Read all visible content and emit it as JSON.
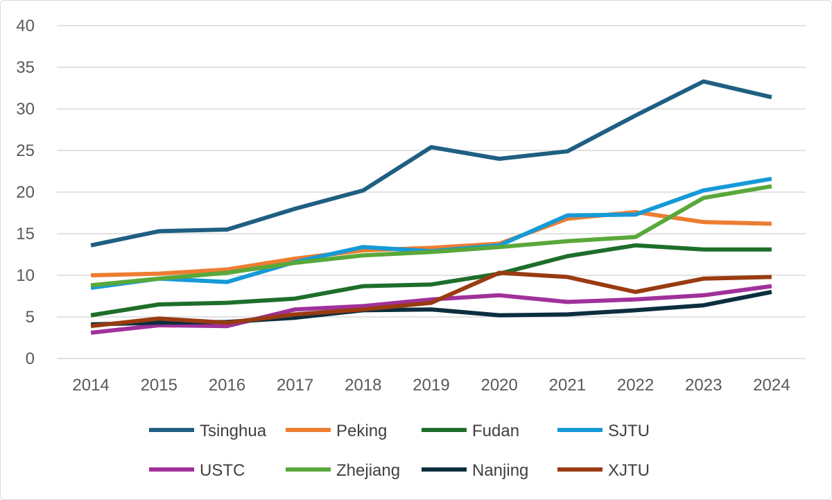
{
  "chart_data": {
    "type": "line",
    "title": "",
    "xlabel": "",
    "ylabel": "",
    "x": [
      2014,
      2015,
      2016,
      2017,
      2018,
      2019,
      2020,
      2021,
      2022,
      2023,
      2024
    ],
    "ylim": [
      0,
      40
    ],
    "yticks": [
      0,
      5,
      10,
      15,
      20,
      25,
      30,
      35,
      40
    ],
    "grid": true,
    "legend_position": "bottom",
    "series": [
      {
        "name": "Tsinghua",
        "color": "#1f5f82",
        "values": [
          13.6,
          15.3,
          15.5,
          18.0,
          20.2,
          25.4,
          24.0,
          24.9,
          29.2,
          33.3,
          31.4
        ]
      },
      {
        "name": "Peking",
        "color": "#ed7d31",
        "values": [
          10.0,
          10.2,
          10.7,
          12.0,
          13.0,
          13.3,
          13.8,
          16.8,
          17.6,
          16.4,
          16.2
        ]
      },
      {
        "name": "Fudan",
        "color": "#1e6e2a",
        "values": [
          5.2,
          6.5,
          6.7,
          7.2,
          8.7,
          8.9,
          10.2,
          12.3,
          13.6,
          13.1,
          13.1
        ]
      },
      {
        "name": "SJTU",
        "color": "#169ad7",
        "values": [
          8.5,
          9.6,
          9.2,
          11.6,
          13.4,
          12.9,
          13.6,
          17.2,
          17.3,
          20.2,
          21.6
        ]
      },
      {
        "name": "USTC",
        "color": "#a1319a",
        "values": [
          3.1,
          4.0,
          3.9,
          5.9,
          6.3,
          7.1,
          7.6,
          6.8,
          7.1,
          7.6,
          8.7
        ]
      },
      {
        "name": "Zhejiang",
        "color": "#59a83a",
        "values": [
          8.8,
          9.6,
          10.3,
          11.5,
          12.4,
          12.8,
          13.4,
          14.1,
          14.6,
          19.3,
          20.7
        ]
      },
      {
        "name": "Nanjing",
        "color": "#0c2e3e",
        "values": [
          4.1,
          4.3,
          4.4,
          4.9,
          5.8,
          5.9,
          5.2,
          5.3,
          5.8,
          6.4,
          8.0
        ]
      },
      {
        "name": "XJTU",
        "color": "#993b11",
        "values": [
          3.9,
          4.8,
          4.3,
          5.3,
          5.9,
          6.7,
          10.3,
          9.8,
          8.0,
          9.6,
          9.8
        ]
      }
    ]
  }
}
